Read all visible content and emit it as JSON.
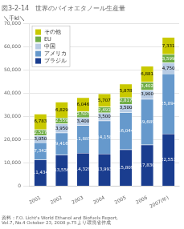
{
  "chart_data": {
    "type": "bar",
    "title": "図3-2-14　世界のバイオエタノール生産量",
    "ylabel": "＼千kl＼",
    "annotations": [
      "資料：F.O. Licht's World Ethanol and Biofuels Report,\nVol.7, No.4 October 23, 2008 p.75より環境省作成"
    ],
    "categories": [
      "2001",
      "2002",
      "2003",
      "2004",
      "2005",
      "2006",
      "2007(年)"
    ],
    "series": [
      {
        "name": "ブラジル",
        "color": "#1a3d8f",
        "values": [
          11434,
          13556,
          14329,
          13993,
          15809,
          17830,
          22551
        ],
        "value_labels": [
          "11,434",
          "13,556",
          "14,329",
          "13,993",
          "15,809",
          "17,830",
          "22,551"
        ]
      },
      {
        "name": "アメリカ",
        "color": "#6699cc",
        "values": [
          7342,
          9416,
          11885,
          14158,
          16044,
          19689,
          25894
        ],
        "value_labels": [
          "7,342",
          "9,416",
          "11,885",
          "14,158",
          "16,044",
          "19,689",
          "25,894"
        ]
      },
      {
        "name": "中国",
        "color": "#b8cce4",
        "values": [
          3050,
          3950,
          3400,
          3500,
          3500,
          3900,
          4750
        ],
        "value_labels": [
          "3,050",
          "3,950",
          "3,400",
          "3,500",
          "3,500",
          "3,900",
          "4,750"
        ]
      },
      {
        "name": "EU",
        "color": "#70ad47",
        "values": [
          2527,
          2559,
          2507,
          2491,
          2817,
          3402,
          3599
        ],
        "value_labels": [
          "2,527",
          "2,559",
          "2,507",
          "2,491",
          "2,817",
          "3,402",
          "3,599"
        ]
      },
      {
        "name": "その他",
        "color": "#c9c900",
        "values": [
          6783,
          6829,
          6046,
          5707,
          5878,
          6881,
          7331
        ],
        "value_labels": [
          "6,783",
          "6,829",
          "6,046",
          "5,707",
          "5,878",
          "6,881",
          "7,331"
        ]
      }
    ],
    "stacked": true,
    "data_labels": true,
    "ylim": [
      0,
      70000
    ],
    "yticks": [
      0,
      {
        "value": 10000,
        "label": "10,000"
      },
      {
        "value": 20000,
        "label": "20,000"
      },
      {
        "value": 30000,
        "label": "30,000"
      },
      {
        "value": 40000,
        "label": "40,000"
      },
      {
        "value": 50000,
        "label": "50,000"
      },
      {
        "value": 60000,
        "label": "60,000"
      },
      {
        "value": 70000,
        "label": "70,000"
      }
    ],
    "grid": true,
    "legend": "upper left"
  }
}
